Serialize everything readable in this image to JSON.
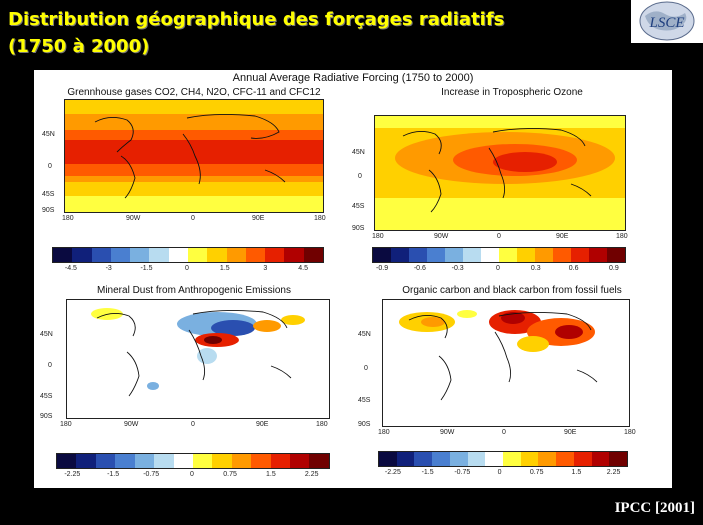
{
  "slide": {
    "title_line1": "Distribution géographique ",
    "title_glyph": "d",
    "title_line1b": "es forçages radiatifs",
    "title_line2": "(1750 à 2000)",
    "source": "IPCC [2001]",
    "logo_text": "LSCE"
  },
  "figure": {
    "title": "Annual Average Radiative Forcing (1750 to 2000)",
    "lat_labels": [
      "45N",
      "0",
      "45S",
      "90S"
    ],
    "lon_labels": [
      "180",
      "90W",
      "0",
      "90E",
      "180"
    ],
    "panels": [
      {
        "title": "Grennhouse gases CO2, CH4, N2O, CFC-11 and CFC12",
        "scale": [
          "-4.5",
          "-3",
          "-1.5",
          "0",
          "1.5",
          "3",
          "4.5"
        ]
      },
      {
        "title": "Increase in Tropospheric Ozone",
        "scale": [
          "-0.9",
          "-0.6",
          "-0.3",
          "0",
          "0.3",
          "0.6",
          "0.9"
        ]
      },
      {
        "title": "Mineral Dust from Anthropogenic Emissions",
        "scale": [
          "-2.25",
          "-1.5",
          "-0.75",
          "0",
          "0.75",
          "1.5",
          "2.25"
        ]
      },
      {
        "title": "Organic carbon and black carbon from fossil fuels",
        "scale": [
          "-2.25",
          "-1.5",
          "-0.75",
          "0",
          "0.75",
          "1.5",
          "2.25"
        ]
      }
    ]
  },
  "colors": {
    "scale": [
      "#0a0a40",
      "#10207a",
      "#2a4fb0",
      "#4a7fd0",
      "#7ab0e0",
      "#b8dcf0",
      "#ffffff",
      "#ffff40",
      "#ffd000",
      "#ff9a00",
      "#ff5a00",
      "#e62000",
      "#b00000",
      "#700000"
    ]
  }
}
